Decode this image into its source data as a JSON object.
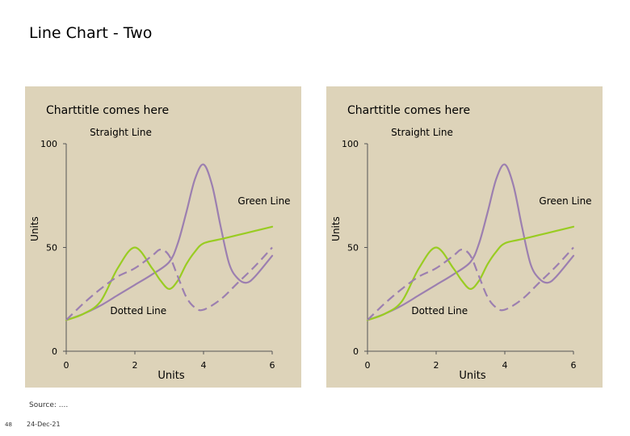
{
  "page": {
    "title": "Line Chart - Two",
    "source": "Source: ....",
    "page_number": "48",
    "date": "24-Dec-21"
  },
  "colors": {
    "panel_bg": "#ddd3b9",
    "purple": "#9c7fb0",
    "green": "#99cc22",
    "axis": "#555555",
    "text": "#000000"
  },
  "chart_data": [
    {
      "type": "line",
      "title": "Charttitle comes here",
      "xlabel": "Units",
      "ylabel": "Units",
      "xlim": [
        0,
        6
      ],
      "ylim": [
        0,
        100
      ],
      "xticks": [
        "0",
        "2",
        "4",
        "6"
      ],
      "yticks": [
        "0",
        "50",
        "100"
      ],
      "grid": false,
      "series": [
        {
          "name": "Straight Line",
          "style": "solid",
          "color": "#9c7fb0",
          "x": [
            0,
            0.5,
            1,
            1.5,
            2,
            2.5,
            3,
            3.25,
            3.5,
            3.75,
            4,
            4.25,
            4.5,
            4.75,
            5,
            5.25,
            5.5,
            6
          ],
          "y": [
            15,
            18,
            22,
            27,
            32,
            37,
            43,
            52,
            67,
            83,
            90,
            80,
            60,
            42,
            35,
            33,
            36,
            46
          ]
        },
        {
          "name": "Green Line",
          "style": "solid",
          "color": "#99cc22",
          "x": [
            0,
            0.5,
            1,
            1.5,
            2,
            2.5,
            2.75,
            3,
            3.25,
            3.5,
            3.75,
            4,
            4.5,
            5,
            5.5,
            6
          ],
          "y": [
            15,
            18,
            24,
            40,
            50,
            40,
            34,
            30,
            34,
            42,
            48,
            52,
            54,
            56,
            58,
            60
          ]
        },
        {
          "name": "Dotted Line",
          "style": "dashed",
          "color": "#9c7fb0",
          "x": [
            0,
            0.5,
            1,
            1.5,
            2,
            2.5,
            2.75,
            3,
            3.25,
            3.5,
            3.75,
            4,
            4.5,
            5,
            5.5,
            6
          ],
          "y": [
            15,
            23,
            30,
            36,
            40,
            46,
            49,
            46,
            36,
            26,
            21,
            20,
            25,
            33,
            41,
            50
          ]
        }
      ]
    },
    {
      "type": "line",
      "title": "Charttitle comes here",
      "xlabel": "Units",
      "ylabel": "Units",
      "xlim": [
        0,
        6
      ],
      "ylim": [
        0,
        100
      ],
      "xticks": [
        "0",
        "2",
        "4",
        "6"
      ],
      "yticks": [
        "0",
        "50",
        "100"
      ],
      "grid": false,
      "series": [
        {
          "name": "Straight Line",
          "style": "solid",
          "color": "#9c7fb0",
          "x": [
            0,
            0.5,
            1,
            1.5,
            2,
            2.5,
            3,
            3.25,
            3.5,
            3.75,
            4,
            4.25,
            4.5,
            4.75,
            5,
            5.25,
            5.5,
            6
          ],
          "y": [
            15,
            18,
            22,
            27,
            32,
            37,
            43,
            52,
            67,
            83,
            90,
            80,
            60,
            42,
            35,
            33,
            36,
            46
          ]
        },
        {
          "name": "Green Line",
          "style": "solid",
          "color": "#99cc22",
          "x": [
            0,
            0.5,
            1,
            1.5,
            2,
            2.5,
            2.75,
            3,
            3.25,
            3.5,
            3.75,
            4,
            4.5,
            5,
            5.5,
            6
          ],
          "y": [
            15,
            18,
            24,
            40,
            50,
            40,
            34,
            30,
            34,
            42,
            48,
            52,
            54,
            56,
            58,
            60
          ]
        },
        {
          "name": "Dotted Line",
          "style": "dashed",
          "color": "#9c7fb0",
          "x": [
            0,
            0.5,
            1,
            1.5,
            2,
            2.5,
            2.75,
            3,
            3.25,
            3.5,
            3.75,
            4,
            4.5,
            5,
            5.5,
            6
          ],
          "y": [
            15,
            23,
            30,
            36,
            40,
            46,
            49,
            46,
            36,
            26,
            21,
            20,
            25,
            33,
            41,
            50
          ]
        }
      ]
    }
  ]
}
